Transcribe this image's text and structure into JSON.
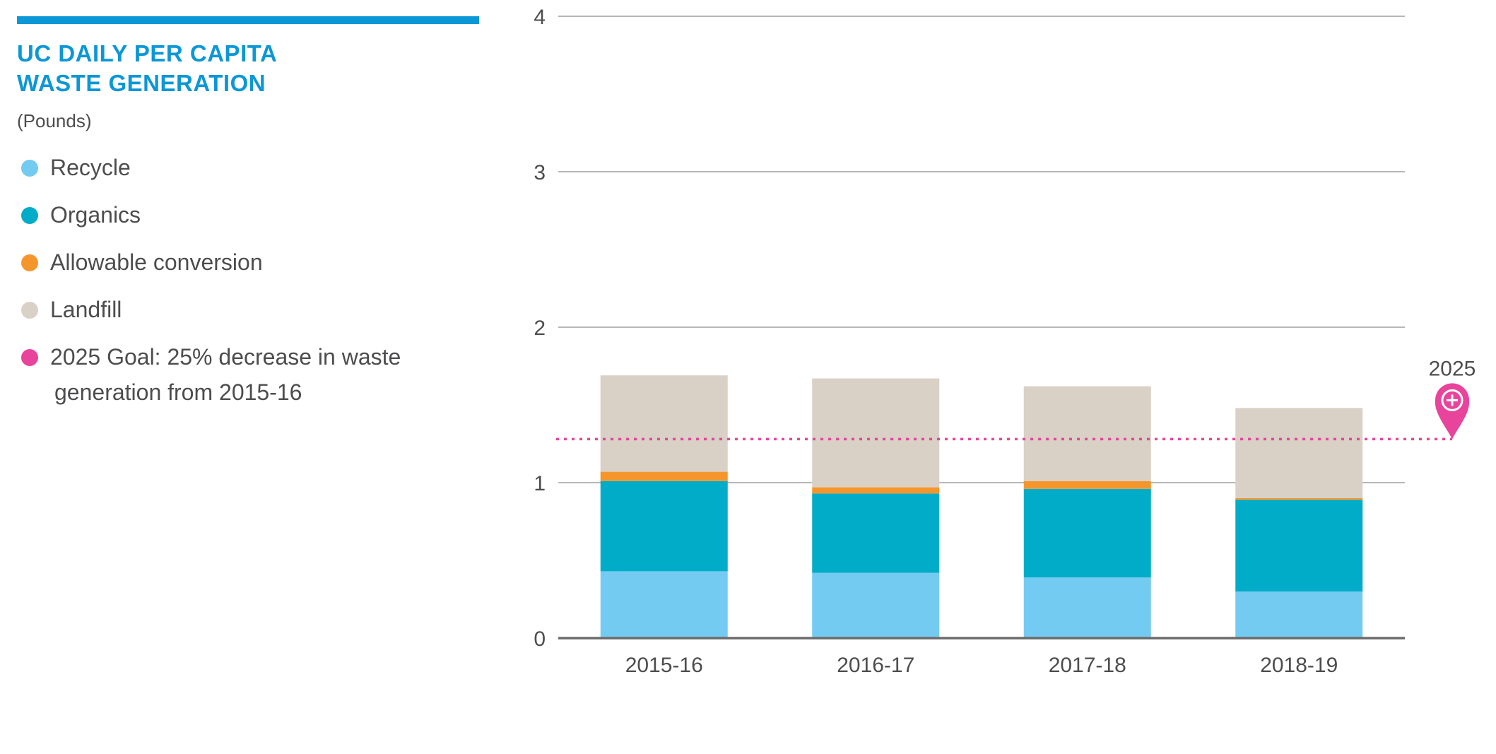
{
  "header": {
    "title_line1": "UC DAILY PER CAPITA",
    "title_line2": "WASTE GENERATION",
    "units": "(Pounds)"
  },
  "legend": {
    "items": [
      {
        "label": "Recycle",
        "color": "#74cbf2"
      },
      {
        "label": "Organics",
        "color": "#00acc7"
      },
      {
        "label": "Allowable conversion",
        "color": "#f5962d"
      },
      {
        "label": "Landfill",
        "color": "#d9d0c6"
      }
    ],
    "goal": {
      "label_line1": "2025 Goal: 25% decrease in waste",
      "label_line2": "generation from 2015-16",
      "color": "#e8449b"
    }
  },
  "colors": {
    "accent": "#0c97d6",
    "grid": "#8c8c8c",
    "baseline": "#6b6b6b",
    "goal": "#e8449b",
    "text": "#4d4d4f"
  },
  "chart_data": {
    "type": "bar",
    "stacked": true,
    "title": "UC DAILY PER CAPITA WASTE GENERATION",
    "ylabel": "(Pounds)",
    "categories": [
      "2015-16",
      "2016-17",
      "2017-18",
      "2018-19"
    ],
    "ylim": [
      0,
      4
    ],
    "yticks": [
      "0",
      "1",
      "2",
      "3",
      "4"
    ],
    "series": [
      {
        "name": "Recycle",
        "color": "#74cbf2",
        "values": [
          0.43,
          0.42,
          0.39,
          0.3
        ]
      },
      {
        "name": "Organics",
        "color": "#00acc7",
        "values": [
          0.58,
          0.51,
          0.57,
          0.59
        ]
      },
      {
        "name": "Allowable conversion",
        "color": "#f5962d",
        "values": [
          0.06,
          0.04,
          0.05,
          0.01
        ]
      },
      {
        "name": "Landfill",
        "color": "#d9d0c6",
        "values": [
          0.62,
          0.7,
          0.61,
          0.58
        ]
      }
    ],
    "goal_line": {
      "value": 1.28,
      "marker_label": "2025",
      "marker_icon": "plus-circle-pin-icon"
    },
    "grid": true,
    "legend_position": "left"
  }
}
